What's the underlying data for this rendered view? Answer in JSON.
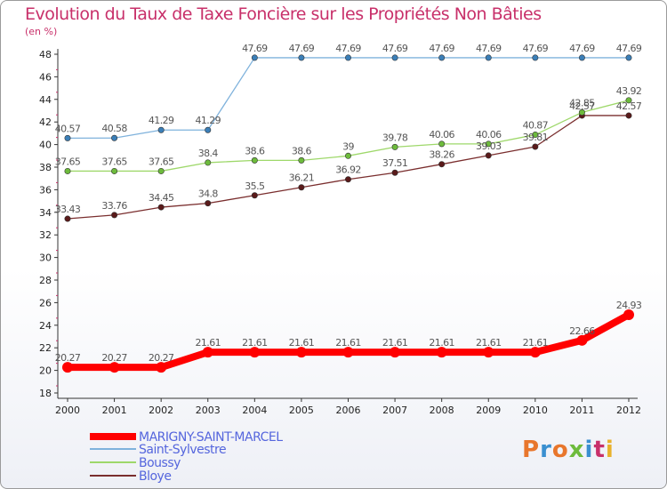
{
  "header": {
    "title": "Evolution du Taux de Taxe Foncière sur les Propriétés Non Bâties",
    "unit": "(en %)"
  },
  "logo": {
    "text": "Proxiti",
    "colors": [
      "#e8762c",
      "#3a8fd0",
      "#e8762c",
      "#6dbb3c",
      "#3a8fd0",
      "#c8306a",
      "#e8b22c"
    ]
  },
  "chart_data": {
    "type": "line",
    "x": [
      "2000",
      "2001",
      "2002",
      "2003",
      "2004",
      "2005",
      "2006",
      "2007",
      "2008",
      "2009",
      "2010",
      "2011",
      "2012"
    ],
    "ylim": [
      18,
      48
    ],
    "yticks": [
      18,
      20,
      22,
      24,
      26,
      28,
      30,
      32,
      34,
      36,
      38,
      40,
      42,
      44,
      46,
      48
    ],
    "grid": false,
    "legend_position": "bottom-left",
    "series": [
      {
        "name": "MARIGNY-SAINT-MARCEL",
        "color": "#ff0000",
        "marker": "#ff0000",
        "values": [
          20.27,
          20.27,
          20.27,
          21.61,
          21.61,
          21.61,
          21.61,
          21.61,
          21.61,
          21.61,
          21.61,
          22.66,
          24.93
        ],
        "labels": [
          "20.27",
          "20.27",
          "20.27",
          "21.61",
          "21.61",
          "21.61",
          "21.61",
          "21.61",
          "21.61",
          "21.61",
          "21.61",
          "22.66",
          "24.93"
        ]
      },
      {
        "name": "Saint-Sylvestre",
        "color": "#7fb2dc",
        "marker": "#3b7fb8",
        "values": [
          40.57,
          40.58,
          41.29,
          41.29,
          47.69,
          47.69,
          47.69,
          47.69,
          47.69,
          47.69,
          47.69,
          47.69,
          47.69
        ],
        "labels": [
          "40.57",
          "40.58",
          "41.29",
          "41.29",
          "47.69",
          "47.69",
          "47.69",
          "47.69",
          "47.69",
          "47.69",
          "47.69",
          "47.69",
          "47.69"
        ]
      },
      {
        "name": "Boussy",
        "color": "#9ed86a",
        "marker": "#6dbb3c",
        "values": [
          37.65,
          37.65,
          37.65,
          38.4,
          38.6,
          38.6,
          39,
          39.78,
          40.06,
          40.06,
          40.87,
          42.85,
          43.92
        ],
        "labels": [
          "37.65",
          "37.65",
          "37.65",
          "38.4",
          "38.6",
          "38.6",
          "39",
          "39.78",
          "40.06",
          "40.06",
          "40.87",
          "42.85",
          "43.92"
        ]
      },
      {
        "name": "Bloye",
        "color": "#7a2e2e",
        "marker": "#5a1a1a",
        "values": [
          33.43,
          33.76,
          34.45,
          34.8,
          35.5,
          36.21,
          36.92,
          37.51,
          38.26,
          39.03,
          39.81,
          42.57,
          42.57
        ],
        "labels": [
          "33.43",
          "33.76",
          "34.45",
          "34.8",
          "35.5",
          "36.21",
          "36.92",
          "37.51",
          "38.26",
          "39.03",
          "39.81",
          "42.57",
          "42.57"
        ]
      }
    ]
  }
}
